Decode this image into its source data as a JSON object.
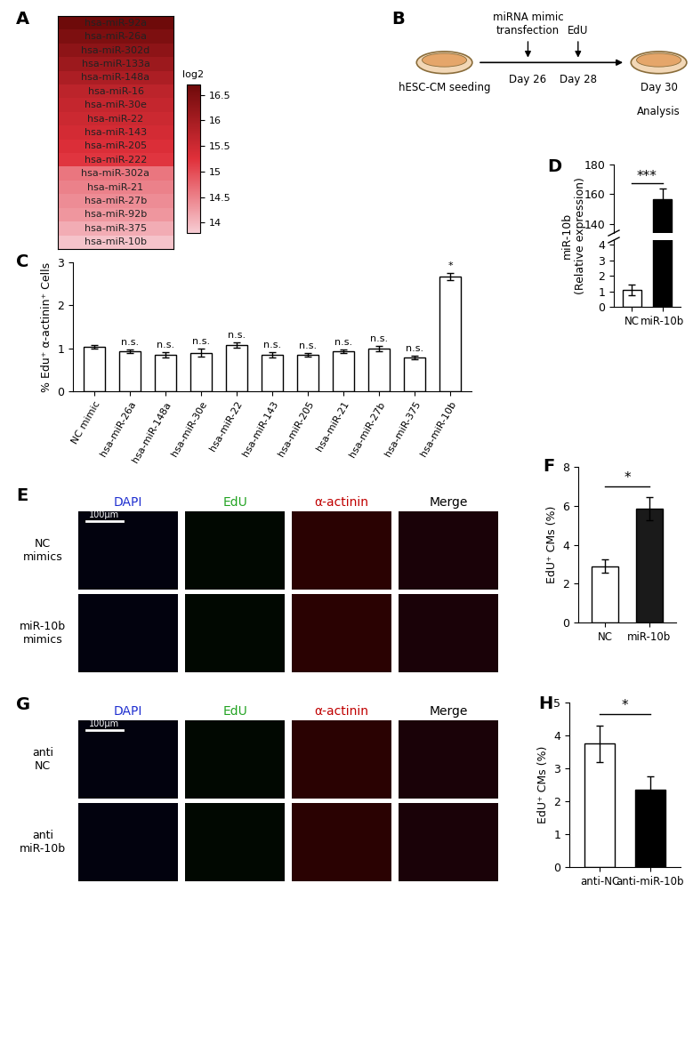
{
  "chart_data": [
    {
      "panel": "A",
      "type": "heatmap",
      "categories": [
        "hsa-miR-92a",
        "hsa-miR-26a",
        "hsa-miR-302d",
        "hsa-miR-133a",
        "hsa-miR-148a",
        "hsa-miR-16",
        "hsa-miR-30e",
        "hsa-miR-22",
        "hsa-miR-143",
        "hsa-miR-205",
        "hsa-miR-222",
        "hsa-miR-302a",
        "hsa-miR-21",
        "hsa-miR-27b",
        "hsa-miR-92b",
        "hsa-miR-375",
        "hsa-miR-10b"
      ],
      "values": [
        16.7,
        16.5,
        16.3,
        16.1,
        15.9,
        15.7,
        15.6,
        15.5,
        15.4,
        15.3,
        15.2,
        14.6,
        14.5,
        14.4,
        14.3,
        14.1,
        13.9
      ],
      "colorbar_title": "log2",
      "colorbar_range": [
        13.8,
        16.7
      ],
      "colorbar_ticks": [
        14,
        14.5,
        15,
        15.5,
        16,
        16.5
      ],
      "tick_labels": false
    },
    {
      "panel": "C",
      "type": "bar",
      "categories": [
        "NC mimic",
        "hsa-miR-26a",
        "hsa-miR-148a",
        "hsa-miR-30e",
        "hsa-miR-22",
        "hsa-miR-143",
        "hsa-miR-205",
        "hsa-miR-21",
        "hsa-miR-27b",
        "hsa-miR-375",
        "hsa-miR-10b"
      ],
      "values": [
        1.03,
        0.93,
        0.85,
        0.9,
        1.08,
        0.85,
        0.85,
        0.93,
        1.0,
        0.78,
        2.67
      ],
      "errors": [
        0.04,
        0.05,
        0.06,
        0.09,
        0.06,
        0.06,
        0.05,
        0.04,
        0.06,
        0.04,
        0.08
      ],
      "significance": [
        null,
        "n.s.",
        "n.s.",
        "n.s.",
        "n.s.",
        "n.s.",
        "n.s.",
        "n.s.",
        "n.s.",
        "n.s.",
        "*"
      ],
      "ylabel": "% Edu⁺ α-actinin⁺ Cells",
      "ylim": [
        0,
        3
      ],
      "yticks": [
        0,
        1,
        2,
        3
      ],
      "color": "#ffffff"
    },
    {
      "panel": "D",
      "type": "bar",
      "categories": [
        "NC",
        "miR-10b"
      ],
      "values": [
        1.1,
        157
      ],
      "errors": [
        0.35,
        7
      ],
      "significance": "***",
      "ylabel": "miR-10b\n(Relative expression)",
      "ylim_lower": [
        0,
        4.3
      ],
      "yticks_lower": [
        0,
        1,
        2,
        3,
        4
      ],
      "ylim_upper": [
        134,
        180
      ],
      "yticks_upper": [
        140,
        160,
        180
      ],
      "colors": [
        "#ffffff",
        "#000000"
      ]
    },
    {
      "panel": "F",
      "type": "bar",
      "categories": [
        "NC",
        "miR-10b"
      ],
      "values": [
        2.9,
        5.85
      ],
      "errors": [
        0.35,
        0.6
      ],
      "significance": "*",
      "ylabel": "EdU⁺ CMs (%)",
      "ylim": [
        0,
        8
      ],
      "yticks": [
        0,
        2,
        4,
        6,
        8
      ],
      "colors": [
        "#ffffff",
        "#1a1a1a"
      ]
    },
    {
      "panel": "H",
      "type": "bar",
      "categories": [
        "anti-NC",
        "anti-miR-10b"
      ],
      "values": [
        3.75,
        2.35
      ],
      "errors": [
        0.55,
        0.4
      ],
      "significance": "*",
      "ylabel": "EdU⁺ CMs (%)",
      "ylim": [
        0,
        5
      ],
      "yticks": [
        0,
        1,
        2,
        3,
        4,
        5
      ],
      "colors": [
        "#ffffff",
        "#000000"
      ]
    }
  ],
  "diagram": {
    "panel": "B",
    "start": "hESC-CM seeding",
    "events": [
      {
        "above": "miRNA mimic\ntransfection",
        "below": "Day 26"
      },
      {
        "above": "EdU",
        "below": "Day 28"
      }
    ],
    "end": [
      "Day 30",
      "Analysis"
    ]
  },
  "images": [
    {
      "panel": "E",
      "columns": [
        "DAPI",
        "EdU",
        "α-actinin",
        "Merge"
      ],
      "colors": [
        "#1f2fd0",
        "#22a322",
        "#c00000",
        "#000000"
      ],
      "rows": [
        "NC\nmimics",
        "miR-10b\nmimics"
      ],
      "scale_bar": "100μm"
    },
    {
      "panel": "G",
      "columns": [
        "DAPI",
        "EdU",
        "α-actinin",
        "Merge"
      ],
      "colors": [
        "#1f2fd0",
        "#22a322",
        "#c00000",
        "#000000"
      ],
      "rows": [
        "anti\nNC",
        "anti\nmiR-10b"
      ],
      "scale_bar": "100μm"
    }
  ]
}
